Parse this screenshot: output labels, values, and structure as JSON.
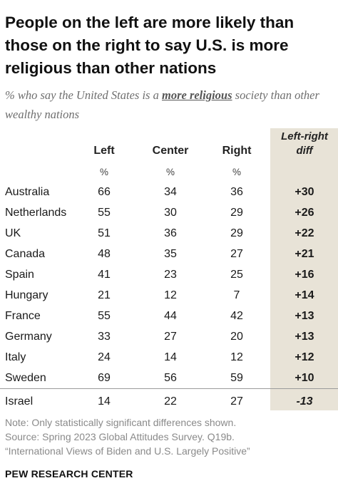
{
  "title": "People on the left are more likely than those on the right to say U.S. is more religious than other nations",
  "subtitle": {
    "before": "% who say the United States is a ",
    "emphasis": "more religious",
    "after": " society than other wealthy nations"
  },
  "columns": {
    "left": "Left",
    "center": "Center",
    "right": "Right",
    "pct": "%",
    "diff_line1": "Left-right",
    "diff_line2": "diff"
  },
  "chart_data": {
    "type": "table",
    "columns": [
      "Left",
      "Center",
      "Right",
      "Left-right diff"
    ],
    "rows": [
      {
        "country": "Australia",
        "left": "66",
        "center": "34",
        "right": "36",
        "diff": "+30"
      },
      {
        "country": "Netherlands",
        "left": "55",
        "center": "30",
        "right": "29",
        "diff": "+26"
      },
      {
        "country": "UK",
        "left": "51",
        "center": "36",
        "right": "29",
        "diff": "+22"
      },
      {
        "country": "Canada",
        "left": "48",
        "center": "35",
        "right": "27",
        "diff": "+21"
      },
      {
        "country": "Spain",
        "left": "41",
        "center": "23",
        "right": "25",
        "diff": "+16"
      },
      {
        "country": "Hungary",
        "left": "21",
        "center": "12",
        "right": "7",
        "diff": "+14"
      },
      {
        "country": "France",
        "left": "55",
        "center": "44",
        "right": "42",
        "diff": "+13"
      },
      {
        "country": "Germany",
        "left": "33",
        "center": "27",
        "right": "20",
        "diff": "+13"
      },
      {
        "country": "Italy",
        "left": "24",
        "center": "14",
        "right": "12",
        "diff": "+12"
      },
      {
        "country": "Sweden",
        "left": "69",
        "center": "56",
        "right": "59",
        "diff": "+10"
      },
      {
        "country": "Israel",
        "left": "14",
        "center": "22",
        "right": "27",
        "diff": "-13"
      }
    ]
  },
  "notes": {
    "line1": "Note: Only statistically significant differences shown.",
    "line2": "Source: Spring 2023 Global Attitudes Survey. Q19b.",
    "line3": "“International Views of Biden and U.S. Largely Positive”"
  },
  "brand": "PEW RESEARCH CENTER",
  "colors": {
    "diff_column_bg": "#e8e3d7",
    "text": "#1a1a1a",
    "note_text": "#8a8a8a"
  }
}
